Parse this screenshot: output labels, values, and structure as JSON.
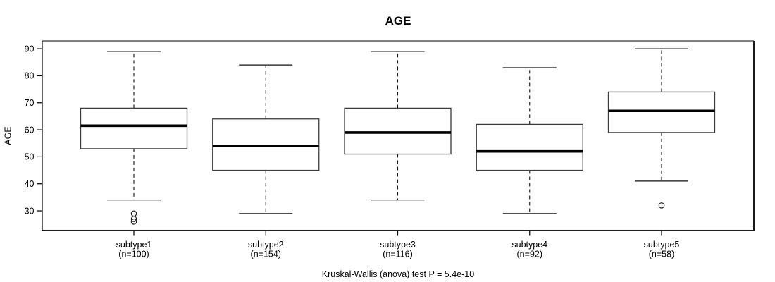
{
  "chart_data": {
    "type": "boxplot",
    "title": "AGE",
    "ylabel": "AGE",
    "xlabel": "",
    "caption": "Kruskal-Wallis (anova) test P = 5.4e-10",
    "yticks": [
      30,
      40,
      50,
      60,
      70,
      80,
      90
    ],
    "ylim": [
      22.7,
      92.9
    ],
    "grid": false,
    "legend": "none",
    "groups": [
      {
        "label": "subtype1",
        "sublabel": "(n=100)",
        "n": 100,
        "whisker_low": 34,
        "q1": 53,
        "median": 61.5,
        "q3": 68,
        "whisker_high": 89,
        "outliers": [
          29,
          27,
          26
        ]
      },
      {
        "label": "subtype2",
        "sublabel": "(n=154)",
        "n": 154,
        "whisker_low": 29,
        "q1": 45,
        "median": 54,
        "q3": 64,
        "whisker_high": 84,
        "outliers": []
      },
      {
        "label": "subtype3",
        "sublabel": "(n=116)",
        "n": 116,
        "whisker_low": 34,
        "q1": 51,
        "median": 59,
        "q3": 68,
        "whisker_high": 89,
        "outliers": []
      },
      {
        "label": "subtype4",
        "sublabel": "(n=92)",
        "n": 92,
        "whisker_low": 29,
        "q1": 45,
        "median": 52,
        "q3": 62,
        "whisker_high": 83,
        "outliers": []
      },
      {
        "label": "subtype5",
        "sublabel": "(n=58)",
        "n": 58,
        "whisker_low": 41,
        "q1": 59,
        "median": 67,
        "q3": 74,
        "whisker_high": 90,
        "outliers": [
          32
        ]
      }
    ],
    "colors": {
      "box_stroke": "#3c3c3c",
      "median": "#000000",
      "whisker": "#111111",
      "frame_top": "#808080",
      "frame_dark": "#1a1a1a",
      "axis": "#000000",
      "background": "#ffffff"
    }
  }
}
